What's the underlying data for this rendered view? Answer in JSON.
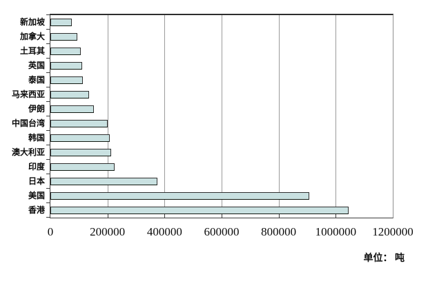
{
  "chart_data": {
    "type": "bar",
    "orientation": "horizontal",
    "title": "",
    "unit_label": "单位： 吨",
    "order": "top-to-bottom",
    "categories": [
      "新加坡",
      "加拿大",
      "土耳其",
      "英国",
      "泰国",
      "马来西亚",
      "伊朗",
      "中国台湾",
      "韩国",
      "澳大利亚",
      "印度",
      "日本",
      "美国",
      "香港"
    ],
    "values": [
      75000,
      94000,
      106000,
      111000,
      113000,
      135000,
      153000,
      202000,
      207000,
      214000,
      224000,
      376000,
      908000,
      1046000
    ],
    "xlim": [
      0,
      1200000
    ],
    "x_ticks": {
      "values": [
        0,
        200000,
        400000,
        600000,
        800000,
        1000000,
        1200000
      ],
      "labels": [
        "0",
        "200000",
        "400000",
        "600000",
        "800000",
        "1000000",
        "1200000"
      ]
    },
    "grid": "vertical-gridlines-on",
    "legend": "none",
    "colors": {
      "bar_fill": "#c9e1e1",
      "bar_border": "#2f2f2f",
      "gridline": "#9a9a9a",
      "plot_border": "#3c3c3c",
      "background": "#ffffff"
    }
  }
}
